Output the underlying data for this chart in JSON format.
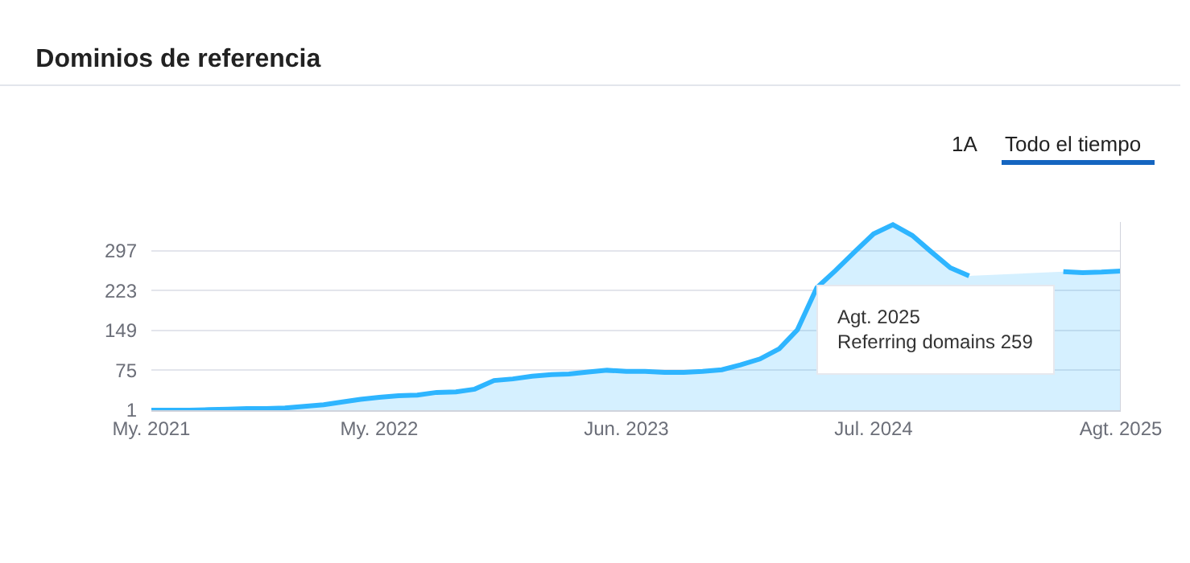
{
  "chart_data": {
    "type": "area",
    "title": "Dominios de referencia",
    "x": [
      "2021-05",
      "2021-06",
      "2021-07",
      "2021-08",
      "2021-09",
      "2021-10",
      "2021-11",
      "2021-12",
      "2022-01",
      "2022-02",
      "2022-03",
      "2022-04",
      "2022-05",
      "2022-06",
      "2022-07",
      "2022-08",
      "2022-09",
      "2022-10",
      "2022-11",
      "2022-12",
      "2023-01",
      "2023-02",
      "2023-03",
      "2023-04",
      "2023-05",
      "2023-06",
      "2023-07",
      "2023-08",
      "2023-09",
      "2023-10",
      "2023-11",
      "2023-12",
      "2024-01",
      "2024-02",
      "2024-03",
      "2024-04",
      "2024-05",
      "2024-06",
      "2024-07",
      "2024-08",
      "2024-09",
      "2024-10",
      "2024-11",
      "2024-12",
      "2025-01",
      "2025-02",
      "2025-03",
      "2025-04",
      "2025-05",
      "2025-06",
      "2025-07",
      "2025-08"
    ],
    "series": [
      {
        "color": "#2eb5ff",
        "values": [
          1,
          1,
          1,
          2,
          3,
          4,
          4,
          5,
          8,
          11,
          16,
          21,
          25,
          28,
          29,
          34,
          35,
          40,
          56,
          59,
          64,
          67,
          68,
          72,
          75,
          73,
          73,
          71,
          71,
          73,
          76,
          85,
          96,
          115,
          150,
          228,
          260,
          295,
          328,
          345,
          325,
          295,
          265,
          250,
          null,
          null,
          null,
          null,
          258,
          256,
          257,
          259
        ]
      }
    ],
    "xlim": [
      "2021-05",
      "2025-08"
    ],
    "xticks": [
      {
        "value": "2021-05",
        "label": "My. 2021"
      },
      {
        "value": "2022-05",
        "label": "My. 2022"
      },
      {
        "value": "2023-06",
        "label": "Jun. 2023"
      },
      {
        "value": "2024-07",
        "label": "Jul. 2024"
      },
      {
        "value": "2025-08",
        "label": "Agt. 2025"
      }
    ],
    "ylim": [
      1,
      350
    ],
    "yticks": [
      1,
      75,
      149,
      223,
      297
    ],
    "grid": "y",
    "legend": false,
    "annotations": [
      "Agt. 2025\nReferring domains 259",
      "1A",
      "Todo el tiempo"
    ]
  }
}
